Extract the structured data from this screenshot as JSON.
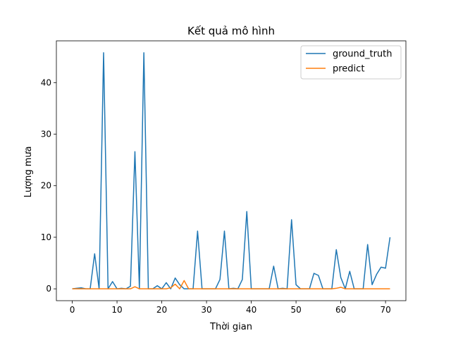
{
  "chart_data": {
    "type": "line",
    "title": "Kết quả mô hình",
    "xlabel": "Thời gian",
    "ylabel": "Lượng mưa",
    "xlim": [
      -3.55,
      74.55
    ],
    "ylim": [
      -2.3,
      48.1
    ],
    "xticks": [
      0,
      10,
      20,
      30,
      40,
      50,
      60,
      70
    ],
    "yticks": [
      0,
      10,
      20,
      30,
      40
    ],
    "grid": false,
    "legend": "top-right",
    "x": [
      0,
      1,
      2,
      3,
      4,
      5,
      6,
      7,
      8,
      9,
      10,
      11,
      12,
      13,
      14,
      15,
      16,
      17,
      18,
      19,
      20,
      21,
      22,
      23,
      24,
      25,
      26,
      27,
      28,
      29,
      30,
      31,
      32,
      33,
      34,
      35,
      36,
      37,
      38,
      39,
      40,
      41,
      42,
      43,
      44,
      45,
      46,
      47,
      48,
      49,
      50,
      51,
      52,
      53,
      54,
      55,
      56,
      57,
      58,
      59,
      60,
      61,
      62,
      63,
      64,
      65,
      66,
      67,
      68,
      69,
      70,
      71
    ],
    "series": [
      {
        "name": "ground_truth",
        "color": "#1f77b4",
        "values": [
          0,
          0.1,
          0.2,
          0,
          0,
          6.8,
          0,
          45.8,
          0,
          1.4,
          0,
          0.1,
          0,
          0.5,
          26.6,
          0,
          45.8,
          0,
          0,
          0.6,
          0,
          1.2,
          0,
          2.1,
          0.8,
          0,
          0,
          0,
          11.2,
          0,
          0,
          0,
          0,
          1.8,
          11.2,
          0,
          0.1,
          0,
          1.8,
          15.0,
          0,
          0,
          0,
          0,
          0,
          4.4,
          0,
          0.1,
          0,
          13.4,
          0.8,
          0,
          0,
          0,
          3.0,
          2.6,
          0,
          0,
          0,
          7.6,
          2.2,
          0,
          3.4,
          0,
          0,
          0,
          8.6,
          0.8,
          2.8,
          4.2,
          4.0,
          10.0
        ]
      },
      {
        "name": "predict",
        "color": "#ff7f0e",
        "values": [
          0,
          0,
          0,
          0,
          0,
          0,
          0,
          0,
          0,
          0,
          0,
          0,
          0,
          0,
          0.4,
          0,
          0,
          0,
          0,
          0,
          0,
          0,
          0.2,
          0.9,
          0,
          1.6,
          0,
          0,
          0,
          0,
          0,
          0,
          0,
          0,
          0,
          0,
          0,
          0,
          0,
          0,
          0,
          0,
          0,
          0,
          0,
          0,
          0,
          0,
          0,
          0,
          0,
          0,
          0,
          0,
          0,
          0,
          0,
          0,
          0,
          0.1,
          0.3,
          0,
          0,
          0,
          0,
          0,
          0,
          0,
          0,
          0,
          0,
          0
        ]
      }
    ]
  }
}
